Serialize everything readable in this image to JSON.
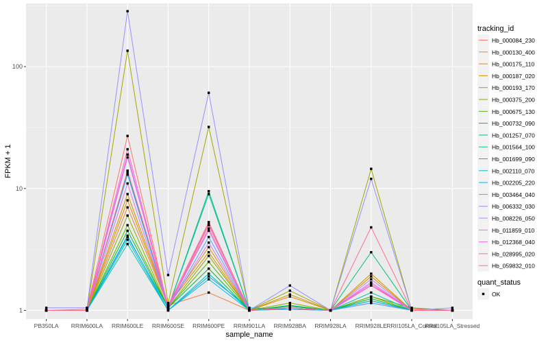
{
  "chart_data": {
    "type": "line",
    "title": "",
    "xlabel": "sample_name",
    "ylabel": "FPKM + 1",
    "y_scale": "log10",
    "ylim": [
      0.85,
      330
    ],
    "y_ticks": [
      1,
      10,
      100
    ],
    "y_tick_labels": [
      "1",
      "10",
      "100"
    ],
    "grid": true,
    "background": "#EBEBEB",
    "categories": [
      "PB350LA",
      "RRIM600LA",
      "RRIM600LE",
      "RRIM600SE",
      "RRIM600PE",
      "RRIM901LA",
      "RRIM928BA",
      "RRIM928LA",
      "RRIM928LE",
      "RRII105LA_Control",
      "RRII105LA_Stressed"
    ],
    "legend_position": "right",
    "legend_title": "tracking_id",
    "series": [
      {
        "name": "Hb_000084_230",
        "color": "#F8766D",
        "values": [
          1.0,
          1.02,
          27.0,
          1.05,
          5.0,
          1.02,
          1.05,
          1.0,
          1.6,
          1.03,
          1.0
        ]
      },
      {
        "name": "Hb_000130_400",
        "color": "#EE8043",
        "values": [
          1.0,
          1.0,
          7.0,
          1.1,
          1.4,
          1.0,
          1.02,
          1.0,
          1.2,
          1.0,
          1.0
        ]
      },
      {
        "name": "Hb_000175_110",
        "color": "#E08B00",
        "values": [
          1.0,
          1.0,
          8.0,
          1.1,
          3.0,
          1.0,
          1.3,
          1.0,
          1.9,
          1.0,
          1.0
        ]
      },
      {
        "name": "Hb_000187_020",
        "color": "#CF9400",
        "values": [
          1.0,
          1.0,
          9.0,
          1.1,
          3.3,
          1.0,
          1.35,
          1.0,
          2.0,
          1.0,
          1.0
        ]
      },
      {
        "name": "Hb_000193_170",
        "color": "#A3A500",
        "values": [
          1.0,
          1.0,
          135.0,
          1.15,
          32.0,
          1.0,
          1.45,
          1.0,
          14.5,
          1.0,
          1.0
        ]
      },
      {
        "name": "Hb_000375_200",
        "color": "#85AD00",
        "values": [
          1.0,
          1.0,
          6.0,
          1.05,
          2.8,
          1.0,
          1.15,
          1.0,
          1.3,
          1.0,
          1.0
        ]
      },
      {
        "name": "Hb_000675_130",
        "color": "#5BB300",
        "values": [
          1.0,
          1.0,
          5.0,
          1.05,
          2.5,
          1.0,
          1.1,
          1.0,
          1.3,
          1.05,
          1.0
        ]
      },
      {
        "name": "Hb_000732_090",
        "color": "#00BA38",
        "values": [
          1.0,
          1.0,
          4.5,
          1.05,
          2.2,
          1.0,
          1.08,
          1.0,
          1.25,
          1.0,
          1.0
        ]
      },
      {
        "name": "Hb_001257_070",
        "color": "#00BF7D",
        "values": [
          1.0,
          1.0,
          13.5,
          1.05,
          9.5,
          1.0,
          1.1,
          1.0,
          3.0,
          1.0,
          1.0
        ]
      },
      {
        "name": "Hb_001564_100",
        "color": "#00C19C",
        "values": [
          1.0,
          1.0,
          4.0,
          1.05,
          9.0,
          1.0,
          1.05,
          1.0,
          1.2,
          1.0,
          1.0
        ]
      },
      {
        "name": "Hb_001699_090",
        "color": "#00C0B8",
        "values": [
          1.0,
          1.0,
          3.5,
          1.0,
          2.0,
          1.0,
          1.05,
          1.0,
          1.4,
          1.0,
          1.0
        ]
      },
      {
        "name": "Hb_002110_070",
        "color": "#00BCD8",
        "values": [
          1.0,
          1.0,
          3.8,
          1.0,
          1.8,
          1.0,
          1.02,
          1.0,
          1.2,
          1.0,
          1.0
        ]
      },
      {
        "name": "Hb_002205_220",
        "color": "#00B0F6",
        "values": [
          1.0,
          1.0,
          4.1,
          1.0,
          1.9,
          1.05,
          1.02,
          1.0,
          1.15,
          1.0,
          1.0
        ]
      },
      {
        "name": "Hb_003464_040",
        "color": "#619CFF",
        "values": [
          1.0,
          1.0,
          13.0,
          1.05,
          4.0,
          1.0,
          1.05,
          1.0,
          1.15,
          1.0,
          1.0
        ]
      },
      {
        "name": "Hb_006332_030",
        "color": "#9590FF",
        "values": [
          1.05,
          1.05,
          285.0,
          1.95,
          61.0,
          1.0,
          1.6,
          1.0,
          12.0,
          1.0,
          1.05
        ]
      },
      {
        "name": "Hb_008226_050",
        "color": "#B983FF",
        "values": [
          1.0,
          1.0,
          18.0,
          1.1,
          4.5,
          1.0,
          1.05,
          1.0,
          1.8,
          1.0,
          1.0
        ]
      },
      {
        "name": "Hb_011859_010",
        "color": "#DB72FB",
        "values": [
          1.0,
          1.0,
          11.0,
          1.05,
          3.6,
          1.0,
          1.05,
          1.0,
          1.7,
          1.0,
          1.0
        ]
      },
      {
        "name": "Hb_012368_040",
        "color": "#F564E3",
        "values": [
          1.0,
          1.0,
          19.0,
          1.05,
          5.2,
          1.0,
          1.05,
          1.0,
          1.6,
          1.0,
          1.0
        ]
      },
      {
        "name": "Hb_028995_020",
        "color": "#FF61C3",
        "values": [
          1.0,
          1.0,
          21.0,
          1.05,
          4.7,
          1.0,
          1.05,
          1.0,
          1.65,
          1.0,
          1.0
        ]
      },
      {
        "name": "Hb_059832_010",
        "color": "#FF6C91",
        "values": [
          1.0,
          1.0,
          14.0,
          1.1,
          5.3,
          1.0,
          1.05,
          1.0,
          4.8,
          1.0,
          1.0
        ]
      }
    ],
    "shape_legend_title": "quant_status",
    "shape_legend_items": [
      "OK"
    ],
    "point_color": "#000000"
  }
}
